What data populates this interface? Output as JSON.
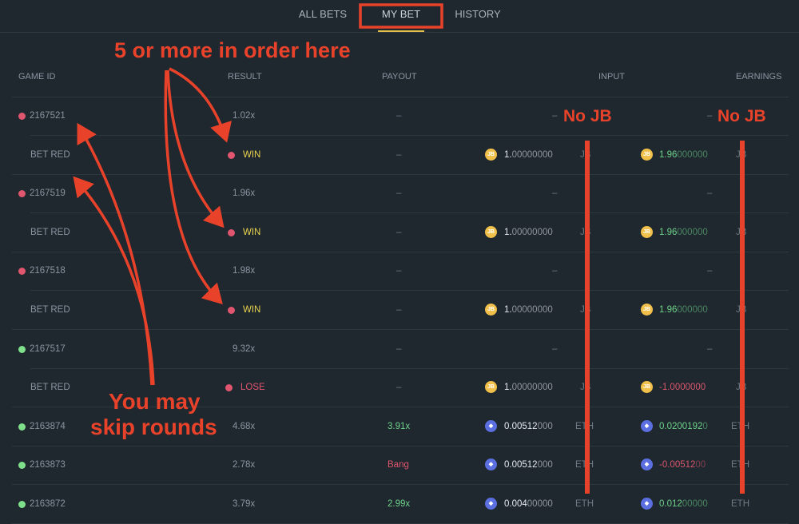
{
  "tabs": [
    {
      "label": "ALL BETS",
      "active": false
    },
    {
      "label": "MY BET",
      "active": true
    },
    {
      "label": "HISTORY",
      "active": false
    }
  ],
  "table": {
    "headers": {
      "game_id": "GAME ID",
      "result": "RESULT",
      "payout": "PAYOUT",
      "input": "INPUT",
      "earnings": "EARNINGS"
    },
    "rows": [
      {
        "type": "game",
        "dot": "red",
        "game_id": "2167521",
        "result": "1.02x",
        "payout": "–",
        "input": "–",
        "earnings": "–"
      },
      {
        "type": "bet",
        "label": "BET RED",
        "dot": "red",
        "result": "WIN",
        "result_color": "#e8d44d",
        "payout": "–",
        "input_coin": "jb",
        "input_main": "1.",
        "input_rest": "00000000",
        "input_unit": "JB",
        "input_color": "#e6eaee",
        "earn_coin": "jb",
        "earn_main": "1.96",
        "earn_rest": "000000",
        "earn_unit": "JB",
        "earn_color": "#6ed38a"
      },
      {
        "type": "game",
        "dot": "red",
        "game_id": "2167519",
        "result": "1.96x",
        "payout": "–",
        "input": "–",
        "earnings": "–"
      },
      {
        "type": "bet",
        "label": "BET RED",
        "dot": "red",
        "result": "WIN",
        "result_color": "#e8d44d",
        "payout": "–",
        "input_coin": "jb",
        "input_main": "1.",
        "input_rest": "00000000",
        "input_unit": "JB",
        "input_color": "#e6eaee",
        "earn_coin": "jb",
        "earn_main": "1.96",
        "earn_rest": "000000",
        "earn_unit": "JB",
        "earn_color": "#6ed38a"
      },
      {
        "type": "game",
        "dot": "red",
        "game_id": "2167518",
        "result": "1.98x",
        "payout": "–",
        "input": "–",
        "earnings": "–"
      },
      {
        "type": "bet",
        "label": "BET RED",
        "dot": "red",
        "result": "WIN",
        "result_color": "#e8d44d",
        "payout": "–",
        "input_coin": "jb",
        "input_main": "1.",
        "input_rest": "00000000",
        "input_unit": "JB",
        "input_color": "#e6eaee",
        "earn_coin": "jb",
        "earn_main": "1.96",
        "earn_rest": "000000",
        "earn_unit": "JB",
        "earn_color": "#6ed38a"
      },
      {
        "type": "game",
        "dot": "green",
        "game_id": "2167517",
        "result": "9.32x",
        "payout": "–",
        "input": "–",
        "earnings": "–"
      },
      {
        "type": "bet",
        "label": "BET RED",
        "dot": "red",
        "result": "LOSE",
        "result_color": "#e0566e",
        "payout": "–",
        "input_coin": "jb",
        "input_main": "1.",
        "input_rest": "00000000",
        "input_unit": "JB",
        "input_color": "#e6eaee",
        "earn_coin": "jb",
        "earn_main": "-1.0000000",
        "earn_rest": "",
        "earn_unit": "JB",
        "earn_color": "#d9566c"
      },
      {
        "type": "full",
        "dot": "green",
        "game_id": "2163874",
        "result": "4.68x",
        "payout": "3.91x",
        "payout_color": "#6ed38a",
        "input_coin": "eth",
        "input_main": "0.00512",
        "input_rest": "000",
        "input_unit": "ETH",
        "input_color": "#e6eaee",
        "earn_coin": "eth",
        "earn_main": "0.0200192",
        "earn_rest": "0",
        "earn_unit": "ETH",
        "earn_color": "#6ed38a"
      },
      {
        "type": "full",
        "dot": "green",
        "game_id": "2163873",
        "result": "2.78x",
        "payout": "Bang",
        "payout_color": "#e0566e",
        "input_coin": "eth",
        "input_main": "0.00512",
        "input_rest": "000",
        "input_unit": "ETH",
        "input_color": "#e6eaee",
        "earn_coin": "eth",
        "earn_main": "-0.00512",
        "earn_rest": "00",
        "earn_unit": "ETH",
        "earn_color": "#d9566c"
      },
      {
        "type": "full",
        "dot": "green",
        "game_id": "2163872",
        "result": "3.79x",
        "payout": "2.99x",
        "payout_color": "#6ed38a",
        "input_coin": "eth",
        "input_main": "0.004",
        "input_rest": "00000",
        "input_unit": "ETH",
        "input_color": "#e6eaee",
        "earn_coin": "eth",
        "earn_main": "0.012",
        "earn_rest": "00000",
        "earn_unit": "ETH",
        "earn_color": "#6ed38a"
      }
    ]
  },
  "annotations": {
    "top_note": "5 or more in order here",
    "skip_note_line1": "You may",
    "skip_note_line2": "skip rounds",
    "no_jb_input": "No JB",
    "no_jb_earnings": "No JB",
    "color": "#e8432a"
  },
  "colors": {
    "background": "#1f272f",
    "red_dot": "#e0566e",
    "green_dot": "#7ee08a",
    "tab_underline": "#e3c04a"
  }
}
